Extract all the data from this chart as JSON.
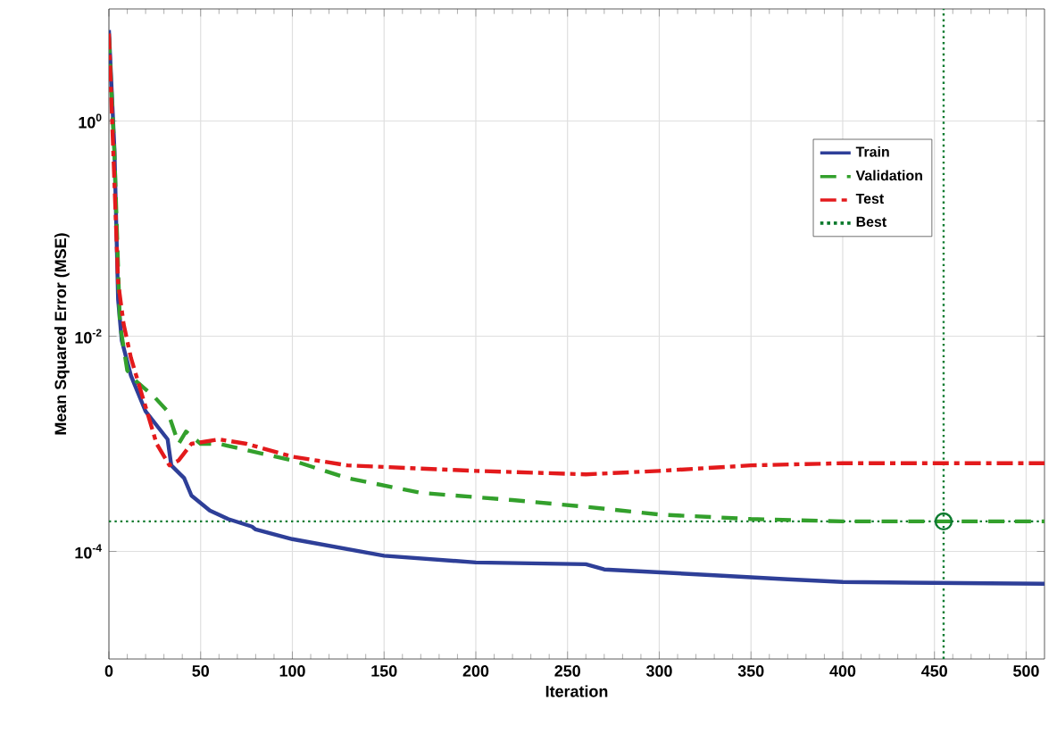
{
  "chart_data": {
    "type": "line",
    "xlabel": "Iteration",
    "ylabel": "Mean Squared Error  (MSE)",
    "log": "y",
    "grid": true,
    "legend": "top right",
    "xlim": [
      0,
      510
    ],
    "xticks": [
      0,
      50,
      100,
      150,
      200,
      250,
      300,
      350,
      400,
      450,
      500
    ],
    "ylim": [
      1e-05,
      11
    ],
    "yticks": [
      {
        "value": 1,
        "label": "10$^{0}$"
      },
      {
        "value": 0.01,
        "label": "10$^{-2}$"
      },
      {
        "value": 0.0001,
        "label": "10$^{-4}$"
      }
    ],
    "series": [
      {
        "name": "Train",
        "color": "#2e3f98",
        "line_style": "solid",
        "x": [
          0,
          3,
          5,
          7,
          12,
          20,
          32,
          34,
          41,
          45,
          55,
          65,
          78,
          80,
          100,
          150,
          200,
          260,
          270,
          330,
          370,
          400,
          450,
          510
        ],
        "values": [
          7.0,
          0.55,
          0.022,
          0.0091,
          0.0043,
          0.002,
          0.0011,
          0.00063,
          0.00048,
          0.00033,
          0.00024,
          0.0002,
          0.00017,
          0.00016,
          0.00013,
          9.1e-05,
          7.9e-05,
          7.6e-05,
          6.8e-05,
          6e-05,
          5.5e-05,
          5.2e-05,
          5.1e-05,
          5e-05
        ]
      },
      {
        "name": "Validation",
        "color": "#33a02c",
        "line_style": "dashed",
        "x": [
          0,
          3,
          6,
          10,
          15,
          25,
          32,
          38,
          42,
          50,
          60,
          100,
          130,
          170,
          220,
          260,
          300,
          350,
          400,
          510
        ],
        "values": [
          6.0,
          0.5,
          0.013,
          0.0048,
          0.0038,
          0.0027,
          0.002,
          0.001,
          0.0013,
          0.001,
          0.001,
          0.0007,
          0.00048,
          0.00035,
          0.0003,
          0.00026,
          0.00022,
          0.0002,
          0.00019,
          0.00019
        ]
      },
      {
        "name": "Test",
        "color": "#e31a1c",
        "line_style": "dashdot",
        "x": [
          0,
          5,
          8,
          12,
          20,
          26,
          33,
          38,
          45,
          60,
          75,
          100,
          130,
          200,
          260,
          300,
          350,
          400,
          510
        ],
        "values": [
          6.5,
          0.032,
          0.013,
          0.0063,
          0.0022,
          0.001,
          0.00063,
          0.0007,
          0.001,
          0.0011,
          0.001,
          0.00076,
          0.00063,
          0.00056,
          0.00052,
          0.00056,
          0.00063,
          0.00066,
          0.00066
        ]
      },
      {
        "name": "Best",
        "type": "scatter",
        "color": "#0b7a2e",
        "line_style": "dotted",
        "marker": "circle",
        "x": [
          455
        ],
        "values": [
          0.00019
        ]
      }
    ],
    "ref_lines": [
      {
        "axis": "x",
        "value": 455,
        "color": "#0b7a2e",
        "line_style": "dotted"
      },
      {
        "axis": "y",
        "value": 0.00019,
        "color": "#0b7a2e",
        "line_style": "dotted"
      }
    ]
  }
}
